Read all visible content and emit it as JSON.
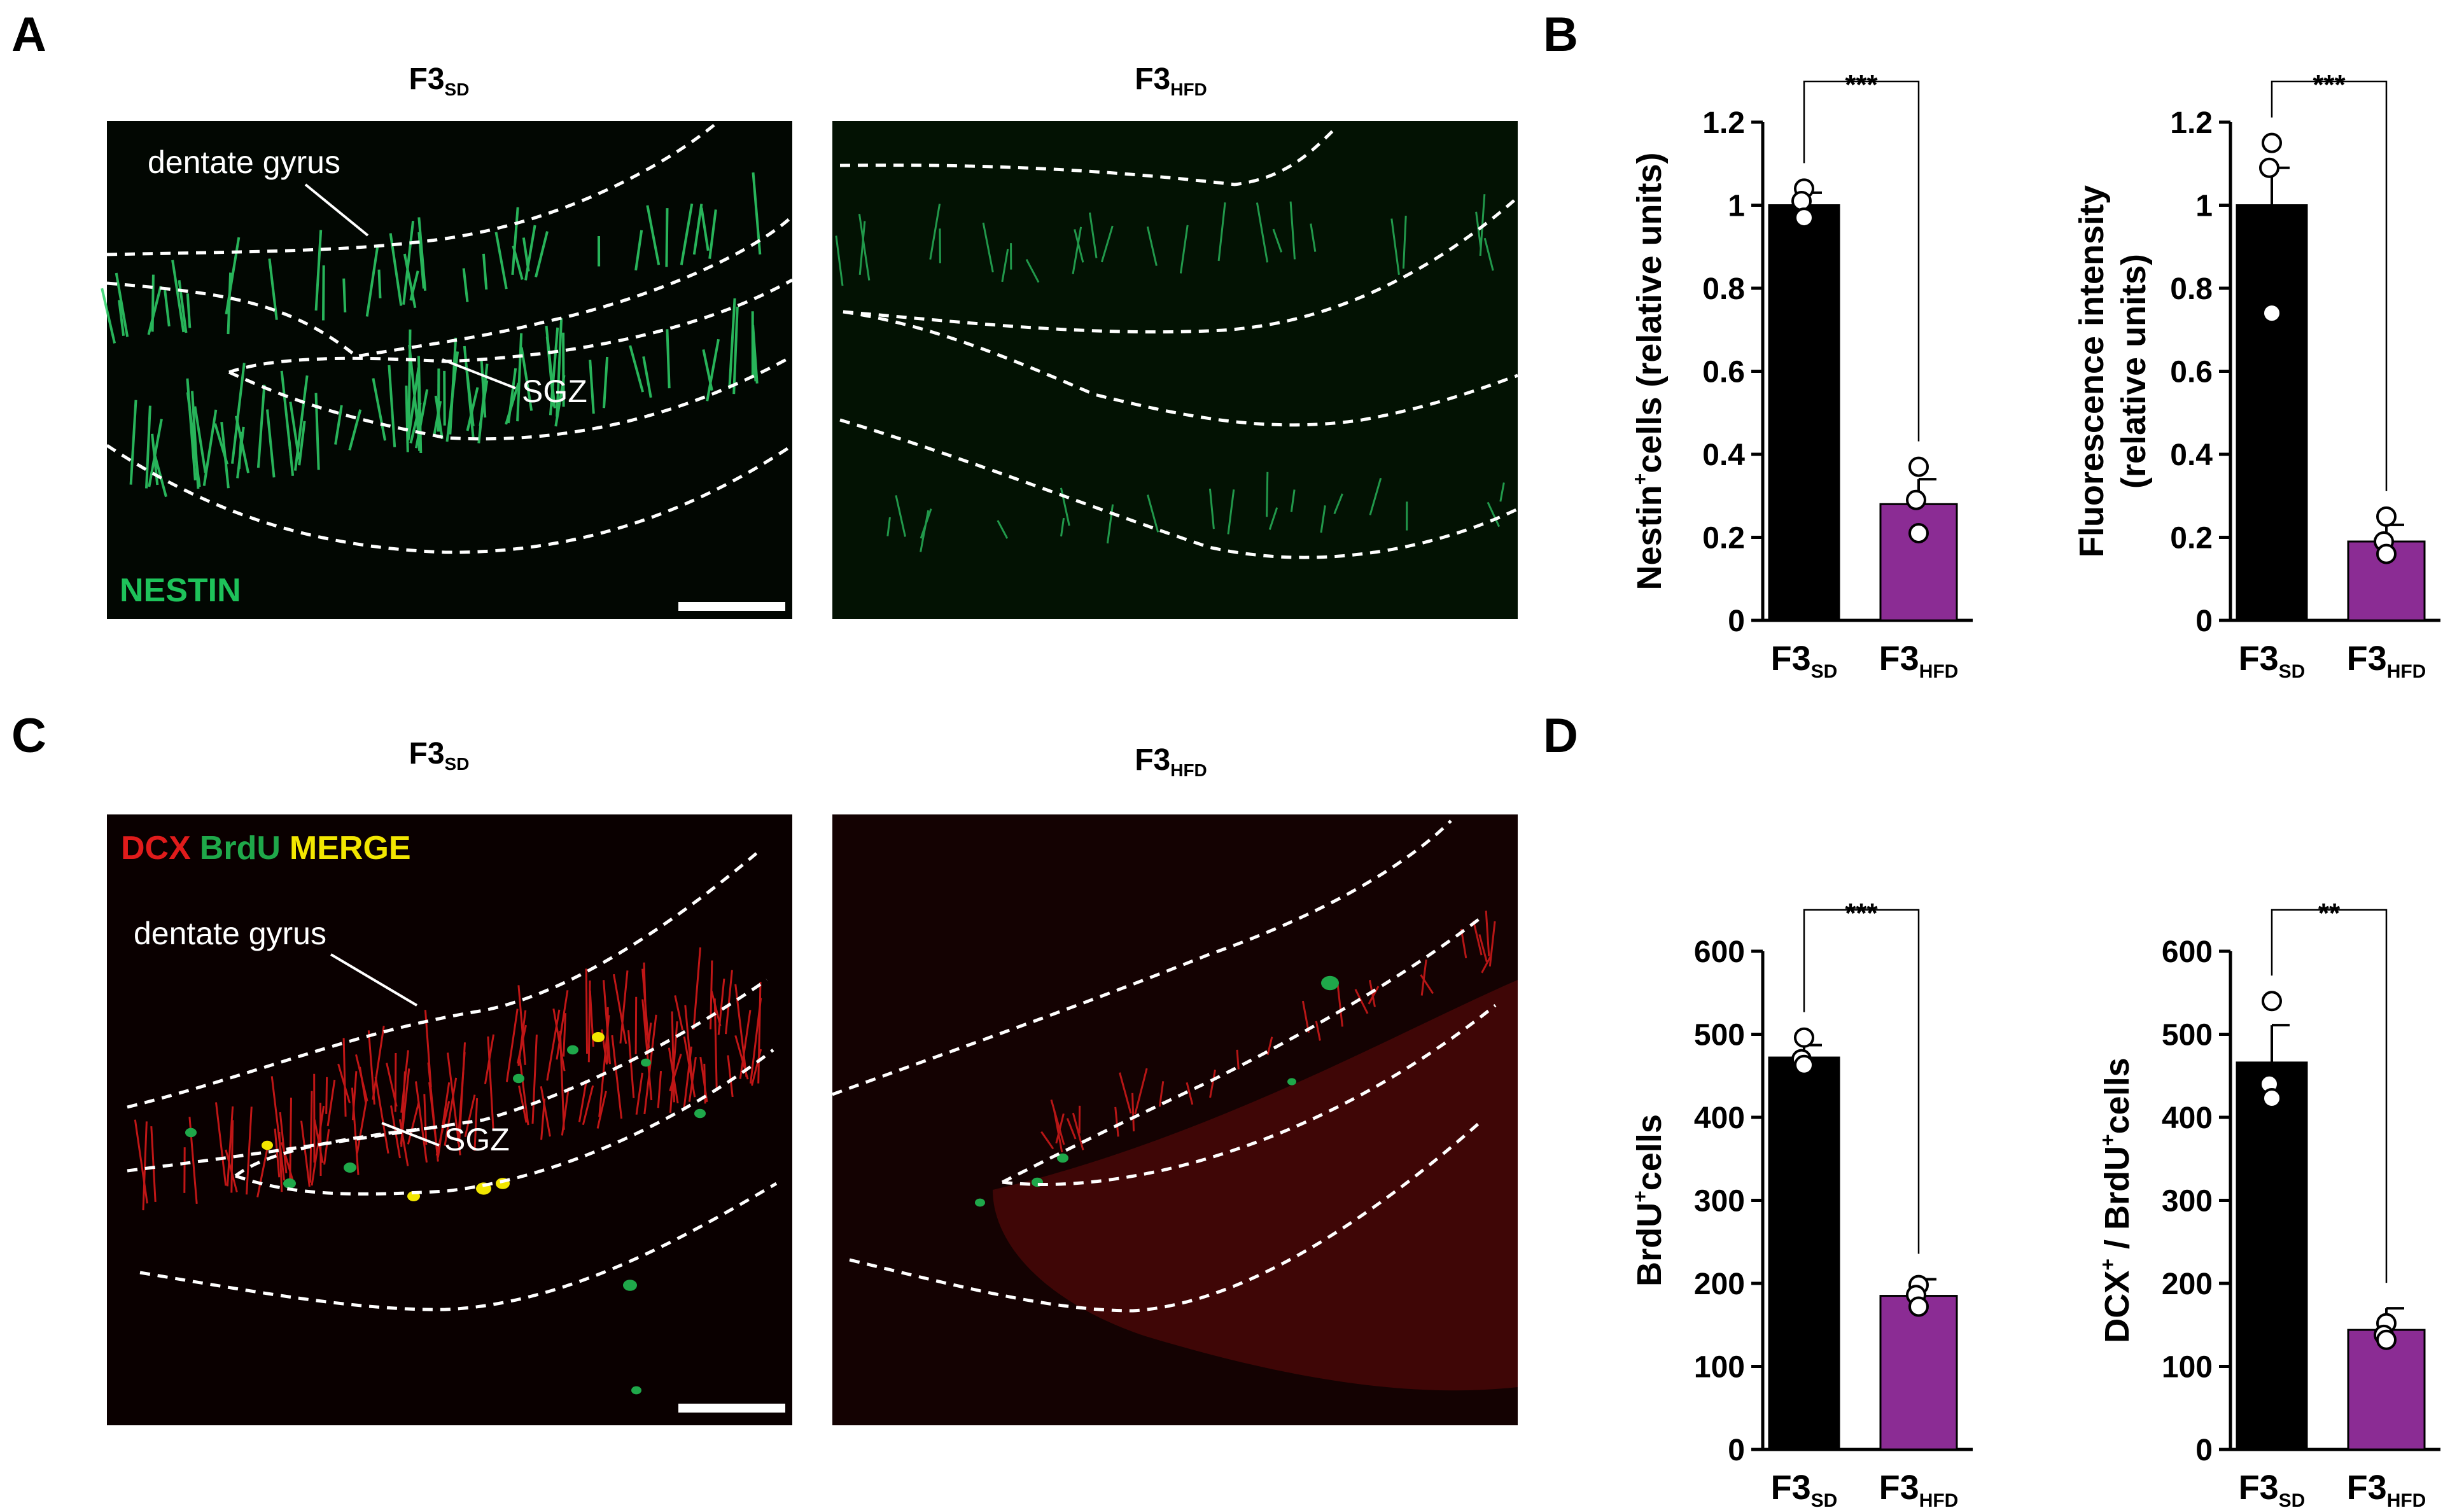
{
  "panels": {
    "A": {
      "letter": "A",
      "left_title": "F3",
      "left_sub": "SD",
      "right_title": "F3",
      "right_sub": "HFD",
      "label_dg": "dentate gyrus",
      "label_sgz": "SGZ",
      "stain": "NESTIN"
    },
    "B": {
      "letter": "B"
    },
    "C": {
      "letter": "C",
      "left_title": "F3",
      "left_sub": "SD",
      "right_title": "F3",
      "right_sub": "HFD",
      "label_dg": "dentate gyrus",
      "label_sgz": "SGZ",
      "stain_dcx": "DCX",
      "stain_brdu": "BrdU",
      "stain_merge": "MERGE"
    },
    "D": {
      "letter": "D"
    }
  },
  "colors": {
    "sd_bar": "#000000",
    "hfd_bar": "#8b2c94",
    "nestin_green": "#2fd36a",
    "dcx_red": "#e01b1b",
    "brdu_green": "#1fa84a",
    "merge_yellow": "#f2e600",
    "micrograph_bg": "#000000"
  },
  "chart_data": [
    {
      "id": "B1",
      "type": "bar",
      "ylabel_main": "Nestin",
      "ylabel_sup": "+",
      "ylabel_rest": "cells (relative units)",
      "ylabel_line2": "",
      "categories": [
        {
          "main": "F3",
          "sub": "SD"
        },
        {
          "main": "F3",
          "sub": "HFD"
        }
      ],
      "values": [
        1.0,
        0.28
      ],
      "errors": [
        0.03,
        0.06
      ],
      "points": [
        [
          1.04,
          1.01,
          0.97
        ],
        [
          0.37,
          0.29,
          0.21
        ]
      ],
      "ylim": [
        0,
        1.2
      ],
      "yticks": [
        0,
        0.2,
        0.4,
        0.6,
        0.8,
        1,
        1.2
      ],
      "ytick_labels": [
        "0",
        "0.2",
        "0.4",
        "0.6",
        "0.8",
        "1",
        "1.2"
      ],
      "significance": "***"
    },
    {
      "id": "B2",
      "type": "bar",
      "ylabel_main": "Fluorescence intensity",
      "ylabel_sup": "",
      "ylabel_rest": "",
      "ylabel_line2": "(relative units)",
      "categories": [
        {
          "main": "F3",
          "sub": "SD"
        },
        {
          "main": "F3",
          "sub": "HFD"
        }
      ],
      "values": [
        1.0,
        0.19
      ],
      "errors": [
        0.09,
        0.04
      ],
      "points": [
        [
          1.15,
          1.09,
          0.74
        ],
        [
          0.25,
          0.19,
          0.16
        ]
      ],
      "ylim": [
        0,
        1.2
      ],
      "yticks": [
        0,
        0.2,
        0.4,
        0.6,
        0.8,
        1,
        1.2
      ],
      "ytick_labels": [
        "0",
        "0.2",
        "0.4",
        "0.6",
        "0.8",
        "1",
        "1.2"
      ],
      "significance": "***"
    },
    {
      "id": "D1",
      "type": "bar",
      "ylabel_main": "BrdU",
      "ylabel_sup": "+",
      "ylabel_rest": "cells",
      "ylabel_line2": "",
      "categories": [
        {
          "main": "F3",
          "sub": "SD"
        },
        {
          "main": "F3",
          "sub": "HFD"
        }
      ],
      "values": [
        472,
        185
      ],
      "errors": [
        15,
        20
      ],
      "points": [
        [
          496,
          470,
          463
        ],
        [
          198,
          186,
          172
        ]
      ],
      "ylim": [
        0,
        600
      ],
      "yticks": [
        0,
        100,
        200,
        300,
        400,
        500,
        600
      ],
      "ytick_labels": [
        "0",
        "100",
        "200",
        "300",
        "400",
        "500",
        "600"
      ],
      "significance": "***"
    },
    {
      "id": "D2",
      "type": "bar",
      "ylabel_main": "DCX",
      "ylabel_sup": "+",
      "ylabel_rest": " / BrdU",
      "ylabel_sup2": "+",
      "ylabel_rest2": "cells",
      "ylabel_line2": "",
      "categories": [
        {
          "main": "F3",
          "sub": "SD"
        },
        {
          "main": "F3",
          "sub": "HFD"
        }
      ],
      "values": [
        466,
        144
      ],
      "errors": [
        45,
        26
      ],
      "points": [
        [
          540,
          440,
          423
        ],
        [
          152,
          138,
          132
        ]
      ],
      "ylim": [
        0,
        600
      ],
      "yticks": [
        0,
        100,
        200,
        300,
        400,
        500,
        600
      ],
      "ytick_labels": [
        "0",
        "100",
        "200",
        "300",
        "400",
        "500",
        "600"
      ],
      "significance": "**"
    }
  ]
}
